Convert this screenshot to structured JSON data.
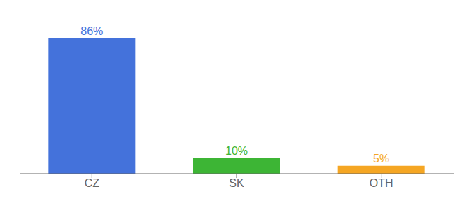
{
  "chart_data": {
    "type": "bar",
    "categories": [
      "CZ",
      "SK",
      "OTH"
    ],
    "values": [
      86,
      10,
      5
    ],
    "value_labels": [
      "86%",
      "10%",
      "5%"
    ],
    "colors": [
      "#4472db",
      "#3db535",
      "#f5a623"
    ],
    "ylim": [
      0,
      96
    ],
    "data_labels": true,
    "tick_labels": "x"
  }
}
